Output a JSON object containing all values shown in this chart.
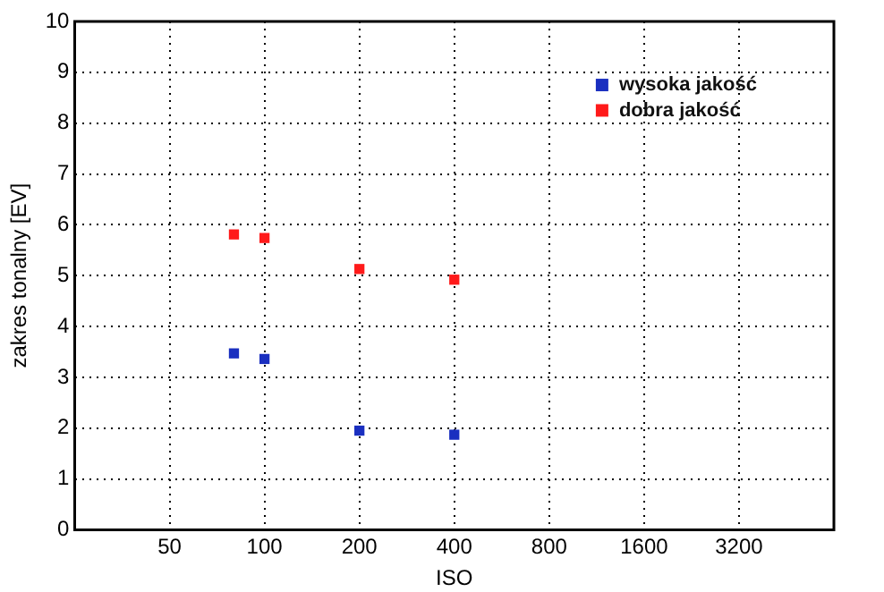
{
  "chart_data": {
    "type": "scatter",
    "xlabel": "ISO",
    "ylabel": "zakres tonalny [EV]",
    "log": "x",
    "xlim": [
      25,
      6400
    ],
    "xticks": [
      50,
      100,
      200,
      400,
      800,
      1600,
      3200
    ],
    "ylim": [
      0,
      10
    ],
    "yticks": [
      0,
      1,
      2,
      3,
      4,
      5,
      6,
      7,
      8,
      9,
      10
    ],
    "grid": true,
    "line_style": "dotted",
    "legend": "top right",
    "marker": "square",
    "series": [
      {
        "name": "wysoka jakość",
        "color": "#1a2fc0",
        "x": [
          80,
          100,
          200,
          400
        ],
        "values": [
          3.47,
          3.36,
          1.95,
          1.87
        ]
      },
      {
        "name": "dobra jakość",
        "color": "#ff1a1a",
        "x": [
          80,
          100,
          200,
          400
        ],
        "values": [
          5.81,
          5.74,
          5.13,
          4.92
        ]
      }
    ]
  }
}
